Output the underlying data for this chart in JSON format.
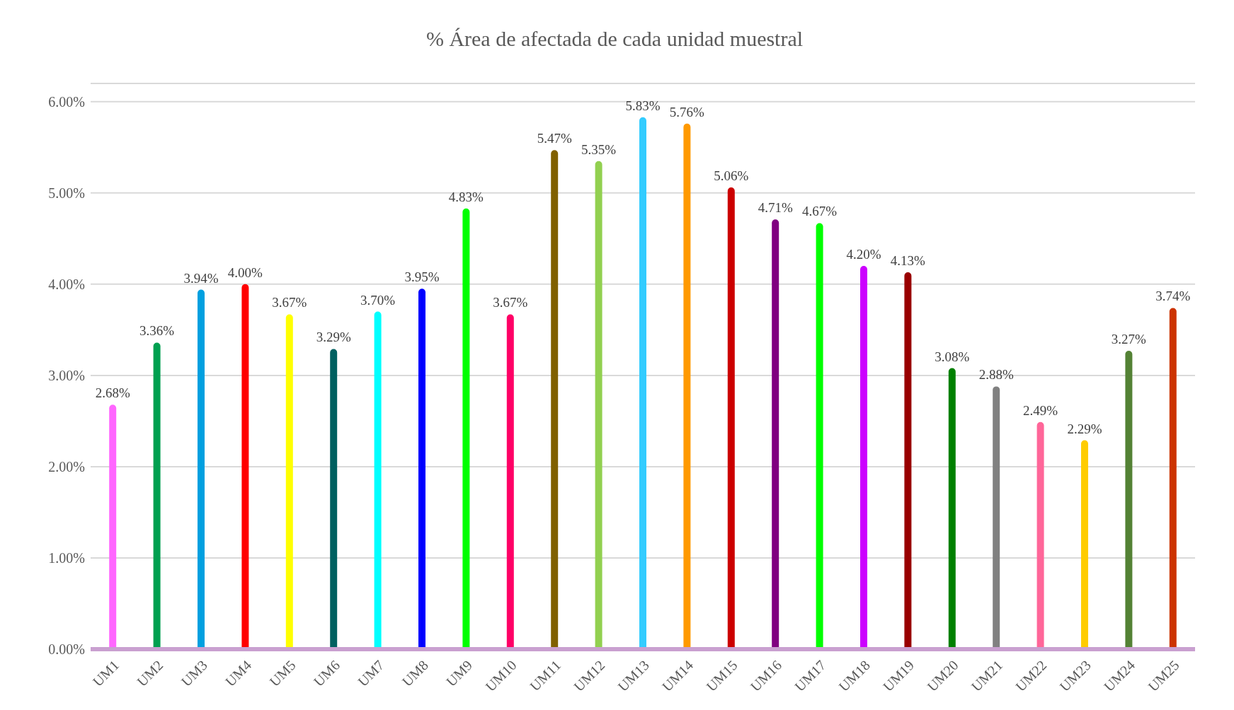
{
  "chart_data": {
    "type": "bar",
    "title": "% Área de afectada de cada unidad muestral",
    "categories": [
      "UM1",
      "UM2",
      "UM3",
      "UM4",
      "UM5",
      "UM6",
      "UM7",
      "UM8",
      "UM9",
      "UM10",
      "UM11",
      "UM12",
      "UM13",
      "UM14",
      "UM15",
      "UM16",
      "UM17",
      "UM18",
      "UM19",
      "UM20",
      "UM21",
      "UM22",
      "UM23",
      "UM24",
      "UM25"
    ],
    "values": [
      2.68,
      3.36,
      3.94,
      4.0,
      3.67,
      3.29,
      3.7,
      3.95,
      4.83,
      3.67,
      5.47,
      5.35,
      5.83,
      5.76,
      5.06,
      4.71,
      4.67,
      4.2,
      4.13,
      3.08,
      2.88,
      2.49,
      2.29,
      3.27,
      3.74
    ],
    "value_labels": [
      "2.68%",
      "3.36%",
      "3.94%",
      "4.00%",
      "3.67%",
      "3.29%",
      "3.70%",
      "3.95%",
      "4.83%",
      "3.67%",
      "5.47%",
      "5.35%",
      "5.83%",
      "5.76%",
      "5.06%",
      "4.71%",
      "4.67%",
      "4.20%",
      "4.13%",
      "3.08%",
      "2.88%",
      "2.49%",
      "2.29%",
      "3.27%",
      "3.74%"
    ],
    "colors": [
      "#ff66ff",
      "#00a050",
      "#00a0e0",
      "#ff0000",
      "#ffff00",
      "#006060",
      "#00ffff",
      "#0000ff",
      "#00ff00",
      "#ff0066",
      "#806000",
      "#92d050",
      "#33ccff",
      "#ff9900",
      "#cc0000",
      "#800080",
      "#00ff00",
      "#cc00ff",
      "#990000",
      "#008000",
      "#808080",
      "#ff6699",
      "#ffcc00",
      "#548235",
      "#cc3300"
    ],
    "ylim": [
      0,
      6.2
    ],
    "yticks": [
      {
        "value": 0,
        "label": "0.00%"
      },
      {
        "value": 1,
        "label": "1.00%"
      },
      {
        "value": 2,
        "label": "2.00%"
      },
      {
        "value": 3,
        "label": "3.00%"
      },
      {
        "value": 4,
        "label": "4.00%"
      },
      {
        "value": 5,
        "label": "5.00%"
      },
      {
        "value": 6,
        "label": "6.00%"
      }
    ],
    "grid": "y"
  }
}
